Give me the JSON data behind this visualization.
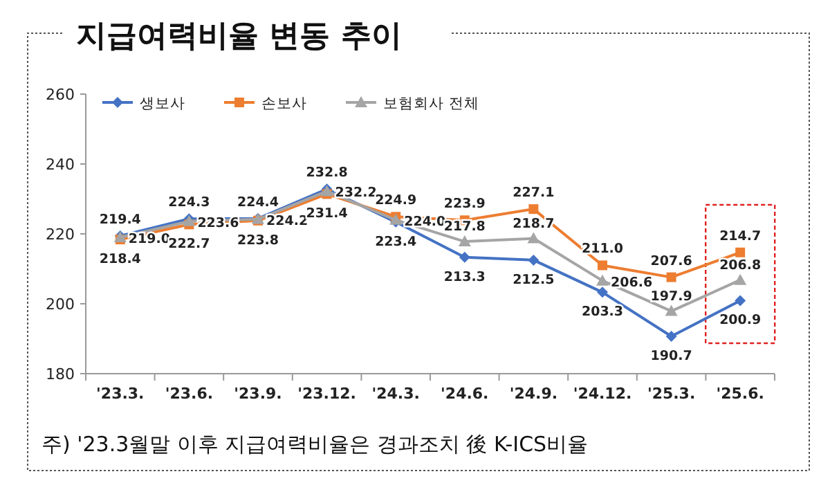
{
  "chart_data": {
    "type": "line",
    "title": "지급여력비율 변동 추이",
    "categories": [
      "'23.3.",
      "'23.6.",
      "'23.9.",
      "'23.12.",
      "'24.3.",
      "'24.6.",
      "'24.9.",
      "'24.12.",
      "'25.3.",
      "'25.6."
    ],
    "series": [
      {
        "name": "생보사",
        "color": "#4472c4",
        "marker": "diamond",
        "values": [
          219.4,
          224.3,
          224.4,
          232.8,
          223.4,
          213.3,
          212.5,
          203.3,
          190.7,
          200.9
        ],
        "value_labels": [
          "219.4",
          "224.3",
          "224.4",
          "232.8",
          "223.4",
          "213.3",
          "212.5",
          "203.3",
          "190.7",
          "200.9"
        ]
      },
      {
        "name": "손보사",
        "color": "#ed7d31",
        "marker": "square",
        "values": [
          218.4,
          222.7,
          223.8,
          231.4,
          224.9,
          223.9,
          227.1,
          211.0,
          207.6,
          214.7
        ],
        "value_labels": [
          "218.4",
          "222.7",
          "223.8",
          "231.4",
          "224.9",
          "223.9",
          "227.1",
          "211.0",
          "207.6",
          "214.7"
        ]
      },
      {
        "name": "보험회사 전체",
        "color": "#a5a5a5",
        "marker": "triangle",
        "values": [
          219.0,
          223.6,
          224.2,
          232.2,
          224.0,
          217.8,
          218.7,
          206.6,
          197.9,
          206.8
        ],
        "value_labels": [
          "219.0",
          "223.6",
          "224.2",
          "232.2",
          "224.0",
          "217.8",
          "218.7",
          "206.6",
          "197.9",
          "206.8"
        ]
      }
    ],
    "ylim": [
      180,
      260
    ],
    "yticks": [
      180,
      200,
      220,
      240,
      260
    ],
    "grid": false,
    "legend": "top left",
    "annotations": [
      "주) '23.3월말 이후 지급여력비율은 경과조치 後 K-ICS비율"
    ]
  }
}
